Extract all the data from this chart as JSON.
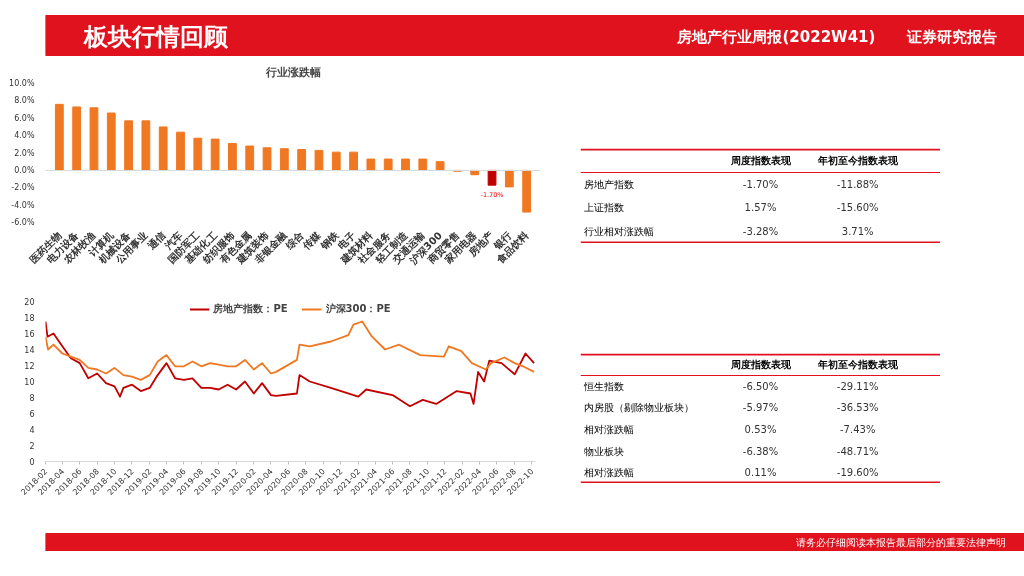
{
  "chart_data": [
    {
      "type": "bar",
      "title": "行业涨跌幅",
      "annotations": [
        "板块行情回顾",
        "房地产行业周报(2022W41)",
        "证券研究报告"
      ],
      "categories": [
        "医药生物",
        "电力设备",
        "农林牧渔",
        "计算机",
        "机械设备",
        "公用事业",
        "通信",
        "汽车",
        "国防军工",
        "基础化工",
        "纺织服饰",
        "有色金属",
        "建筑装饰",
        "非银金融",
        "综合",
        "传媒",
        "钢铁",
        "电子",
        "建筑材料",
        "社会服务",
        "轻工制造",
        "交通运输",
        "沪深300",
        "商贸零售",
        "家用电器",
        "房地产",
        "银行",
        "食品饮料"
      ],
      "values": [
        7.6,
        7.3,
        7.2,
        6.6,
        5.7,
        5.7,
        5.0,
        4.4,
        3.7,
        3.6,
        3.1,
        2.8,
        2.6,
        2.5,
        2.4,
        2.3,
        2.1,
        2.1,
        1.3,
        1.3,
        1.3,
        1.3,
        1.0,
        -0.1,
        -0.5,
        -1.7,
        -1.9,
        -4.8
      ],
      "colors": [
        "#f07822",
        "#f07822",
        "#f07822",
        "#f07822",
        "#f07822",
        "#f07822",
        "#f07822",
        "#f07822",
        "#f07822",
        "#f07822",
        "#f07822",
        "#f07822",
        "#f07822",
        "#f07822",
        "#f07822",
        "#f07822",
        "#f07822",
        "#f07822",
        "#f07822",
        "#f07822",
        "#f07822",
        "#f07822",
        "#f07822",
        "#f07822",
        "#f07822",
        "#c00000",
        "#f07822",
        "#f07822"
      ],
      "value_labels": [
        null,
        null,
        null,
        null,
        null,
        null,
        null,
        null,
        null,
        null,
        null,
        null,
        null,
        null,
        null,
        null,
        null,
        null,
        null,
        null,
        null,
        null,
        null,
        null,
        null,
        "-1.70%",
        null,
        null
      ],
      "ylim": [
        -6,
        10
      ],
      "yticks": [
        {
          "value": -6,
          "label": "-6.0%"
        },
        {
          "value": -4,
          "label": "-4.0%"
        },
        {
          "value": -2,
          "label": "-2.0%"
        },
        {
          "value": 0,
          "label": "0.0%"
        },
        {
          "value": 2,
          "label": "2.0%"
        },
        {
          "value": 4,
          "label": "4.0%"
        },
        {
          "value": 6,
          "label": "6.0%"
        },
        {
          "value": 8,
          "label": "8.0%"
        },
        {
          "value": 10,
          "label": "10.0%"
        }
      ],
      "ref_lines": [
        {
          "axis": "y",
          "value": 0,
          "color": "#d9d9d9"
        }
      ],
      "grid": false
    },
    {
      "type": "line",
      "legend": "top",
      "grid": false,
      "series": [
        {
          "name": "房地产指数：PE",
          "color": "#c00000",
          "x": [
            "2018-02-01",
            "2018-02-08",
            "2018-03-01",
            "2018-04-01",
            "2018-05-01",
            "2018-06-01",
            "2018-07-01",
            "2018-08-01",
            "2018-09-01",
            "2018-10-01",
            "2018-10-20",
            "2018-11-01",
            "2018-12-01",
            "2019-01-01",
            "2019-02-01",
            "2019-03-01",
            "2019-04-01",
            "2019-05-01",
            "2019-06-01",
            "2019-07-01",
            "2019-08-01",
            "2019-09-01",
            "2019-10-01",
            "2019-11-01",
            "2019-12-01",
            "2020-01-01",
            "2020-02-01",
            "2020-03-01",
            "2020-04-01",
            "2020-04-19",
            "2020-07-01",
            "2020-07-10",
            "2020-08-15",
            "2020-10-28",
            "2021-02-01",
            "2021-03-01",
            "2021-06-01",
            "2021-08-01",
            "2021-09-15",
            "2021-11-01",
            "2022-01-12",
            "2022-03-01",
            "2022-03-12",
            "2022-03-28",
            "2022-04-18",
            "2022-05-06",
            "2022-06-18",
            "2022-08-03",
            "2022-09-10",
            "2022-10-10"
          ],
          "values": [
            17.5,
            15.6,
            16.0,
            14.4,
            12.9,
            12.3,
            10.4,
            11.0,
            9.8,
            9.4,
            8.1,
            9.2,
            9.6,
            8.8,
            9.2,
            10.8,
            12.3,
            10.4,
            10.2,
            10.4,
            9.2,
            9.2,
            9.0,
            9.6,
            9.0,
            10.0,
            8.5,
            9.8,
            8.3,
            8.2,
            8.5,
            10.8,
            10.0,
            9.2,
            8.1,
            9.0,
            8.3,
            6.9,
            7.7,
            7.2,
            8.8,
            8.5,
            7.2,
            11.2,
            10.0,
            12.6,
            12.3,
            10.9,
            13.5,
            12.3
          ]
        },
        {
          "name": "沪深300：PE",
          "color": "#f07822",
          "x": [
            "2018-02-01",
            "2018-02-10",
            "2018-03-01",
            "2018-04-01",
            "2018-05-01",
            "2018-06-01",
            "2018-07-01",
            "2018-08-01",
            "2018-09-01",
            "2018-10-01",
            "2018-11-01",
            "2018-12-01",
            "2019-01-01",
            "2019-02-01",
            "2019-03-01",
            "2019-04-01",
            "2019-05-01",
            "2019-06-01",
            "2019-07-01",
            "2019-08-01",
            "2019-09-01",
            "2019-10-01",
            "2019-11-01",
            "2019-12-01",
            "2020-01-01",
            "2020-02-01",
            "2020-03-01",
            "2020-04-01",
            "2020-04-19",
            "2020-07-01",
            "2020-07-10",
            "2020-08-15",
            "2020-10-28",
            "2020-12-28",
            "2021-01-15",
            "2021-02-15",
            "2021-03-21",
            "2021-05-06",
            "2021-06-24",
            "2021-09-06",
            "2021-11-28",
            "2021-12-15",
            "2022-01-28",
            "2022-03-06",
            "2022-04-24",
            "2022-05-12",
            "2022-06-28",
            "2022-08-03",
            "2022-09-01",
            "2022-10-10"
          ],
          "values": [
            15.6,
            14.0,
            14.6,
            13.5,
            13.1,
            12.7,
            11.7,
            11.5,
            11.0,
            11.7,
            10.8,
            10.6,
            10.2,
            10.8,
            12.5,
            13.3,
            11.9,
            11.9,
            12.5,
            11.9,
            12.3,
            12.1,
            11.9,
            11.9,
            12.7,
            11.5,
            12.3,
            11.0,
            11.2,
            12.7,
            14.6,
            14.4,
            15.0,
            15.8,
            17.1,
            17.5,
            15.6,
            14.0,
            14.6,
            13.3,
            13.1,
            14.4,
            13.8,
            12.3,
            11.5,
            12.3,
            13.0,
            12.3,
            11.9,
            11.2
          ]
        }
      ],
      "xlim": [
        "2018-02-01",
        "2022-10-15"
      ],
      "xticks": [
        "2018-02",
        "2018-04",
        "2018-06",
        "2018-08",
        "2018-10",
        "2018-12",
        "2019-02",
        "2019-04",
        "2019-06",
        "2019-08",
        "2019-10",
        "2019-12",
        "2020-02",
        "2020-04",
        "2020-06",
        "2020-08",
        "2020-10",
        "2020-12",
        "2021-02",
        "2021-04",
        "2021-06",
        "2021-08",
        "2021-10",
        "2021-12",
        "2022-02",
        "2022-04",
        "2022-06",
        "2022-08",
        "2022-10"
      ],
      "ylim": [
        0,
        20
      ],
      "yticks": [
        0,
        2,
        4,
        6,
        8,
        10,
        12,
        14,
        16,
        18,
        20
      ]
    },
    {
      "type": "other",
      "categories": [
        null,
        "周度指数表现",
        "年初至今指数表现"
      ],
      "y_categories": [
        "房地产指数",
        "上证指数",
        "行业相对涨跌幅"
      ],
      "cell_labels": [
        [
          "-1.70%",
          "-11.88%"
        ],
        [
          "1.57%",
          "-15.60%"
        ],
        [
          "-3.28%",
          "3.71%"
        ]
      ]
    },
    {
      "type": "other",
      "categories": [
        null,
        "周度指数表现",
        "年初至今指数表现"
      ],
      "y_categories": [
        "恒生指数",
        "内房股（剔除物业板块）",
        "相对涨跌幅",
        "物业板块",
        "相对涨跌幅"
      ],
      "cell_labels": [
        [
          "-6.50%",
          "-29.11%"
        ],
        [
          "-5.97%",
          "-36.53%"
        ],
        [
          "0.53%",
          "-7.43%"
        ],
        [
          "-6.38%",
          "-48.71%"
        ],
        [
          "0.11%",
          "-19.60%"
        ]
      ],
      "annotations": [
        "请务必仔细阅读本报告最后部分的重要法律声明"
      ]
    }
  ]
}
